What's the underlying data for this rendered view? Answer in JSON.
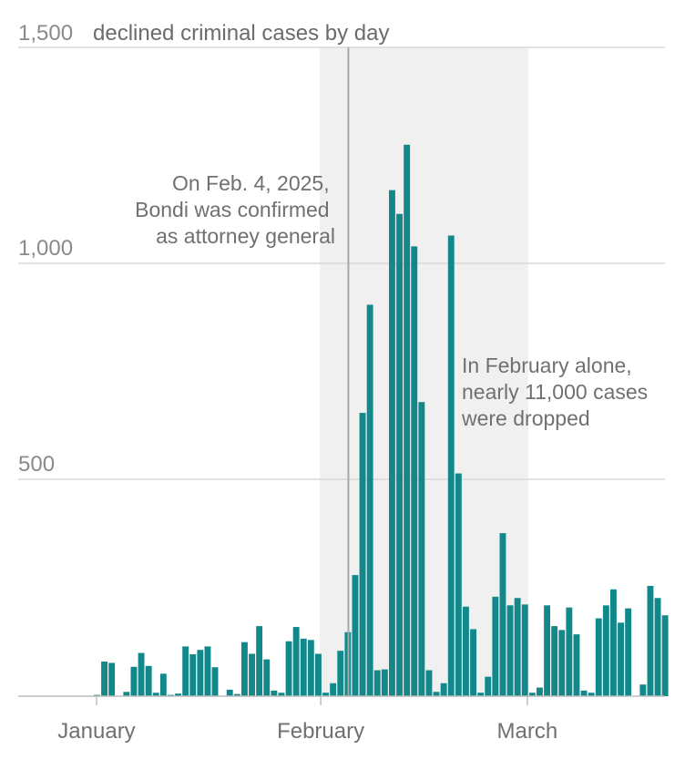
{
  "chart_data": {
    "type": "bar",
    "ylabel": "declined criminal cases by day",
    "ylim": [
      0,
      1500
    ],
    "yticks": [
      500,
      1000,
      1500
    ],
    "ytick_labels": [
      "500",
      "1,000",
      "1,500"
    ],
    "grid": true,
    "x_labels": [
      "January",
      "February",
      "March"
    ],
    "x_label_days": [
      1,
      32,
      60
    ],
    "highlight": {
      "start_day": 32,
      "end_day": 60
    },
    "marker_day": 35.5,
    "annotations": [
      {
        "lines": [
          "On Feb. 4, 2025,",
          "Bondi was confirmed",
          "as attorney general"
        ]
      },
      {
        "lines": [
          "In February alone,",
          "nearly 11,000 cases",
          "were dropped"
        ]
      }
    ],
    "colors": {
      "bar": "#13888a",
      "highlight": "#f0f0f0",
      "grid": "#d8d8d8",
      "axis": "#bdbdbd",
      "marker": "#a8a8a8"
    },
    "series": [
      {
        "values": [
          3,
          80,
          77,
          0,
          10,
          68,
          100,
          70,
          8,
          52,
          3,
          6,
          115,
          97,
          107,
          115,
          67,
          0,
          15,
          5,
          125,
          98,
          162,
          85,
          13,
          8,
          127,
          160,
          133,
          130,
          98,
          8,
          30,
          105,
          148,
          280,
          655,
          905,
          60,
          62,
          1170,
          1115,
          1275,
          1040,
          680,
          60,
          10,
          30,
          1065,
          515,
          207,
          155,
          8,
          45,
          230,
          377,
          210,
          227,
          212,
          8,
          20,
          210,
          162,
          153,
          205,
          143,
          13,
          8,
          180,
          210,
          247,
          170,
          203,
          0,
          27,
          255,
          227,
          187
        ]
      }
    ]
  }
}
